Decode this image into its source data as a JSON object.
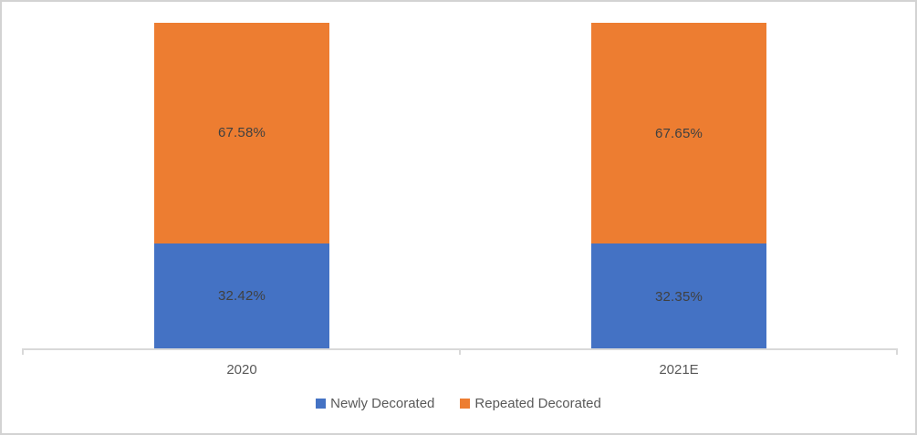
{
  "chart_data": {
    "type": "bar",
    "stacked": true,
    "title": "",
    "xlabel": "",
    "ylabel": "",
    "unit": "%",
    "ylim": [
      0,
      100
    ],
    "grid": false,
    "legend_position": "bottom",
    "categories": [
      "2020",
      "2021E"
    ],
    "series": [
      {
        "name": "Newly Decorated",
        "color": "#4472C4",
        "values": [
          32.42,
          32.35
        ],
        "labels": [
          "32.42%",
          "32.35%"
        ]
      },
      {
        "name": "Repeated Decorated",
        "color": "#ED7D31",
        "values": [
          67.58,
          67.65
        ],
        "labels": [
          "67.58%",
          "67.65%"
        ]
      }
    ]
  },
  "legend": {
    "items": [
      {
        "label": "Newly Decorated",
        "color": "#4472C4"
      },
      {
        "label": "Repeated Decorated",
        "color": "#ED7D31"
      }
    ]
  },
  "colors": {
    "axis_line": "#D9D9D9",
    "chart_border": "#D3D3D3",
    "data_label_text": "#404040",
    "axis_label_text": "#595959",
    "background": "#FFFFFF"
  }
}
